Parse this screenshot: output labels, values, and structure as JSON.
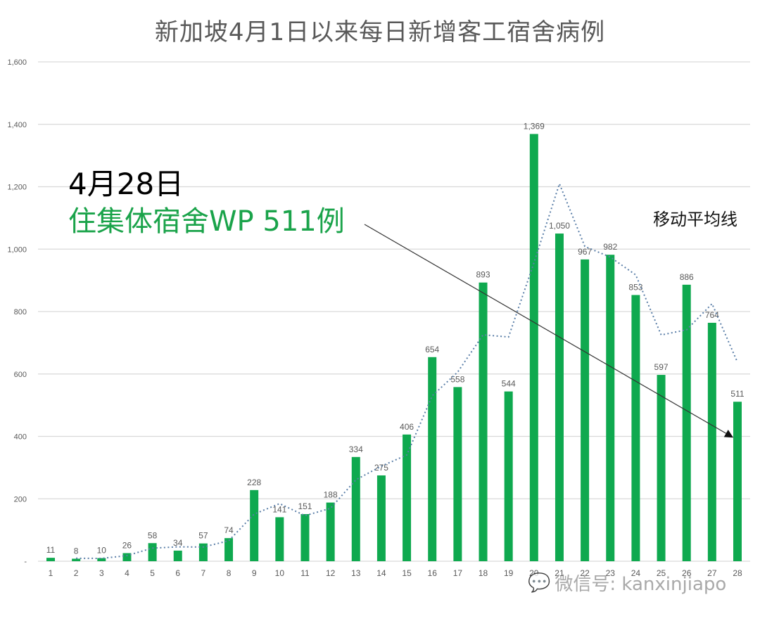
{
  "title": "新加坡4月1日以来每日新增客工宿舍病例",
  "annotations": {
    "date": "4月28日",
    "highlight": "住集体宿舍WP 511例",
    "moving_average_label": "移动平均线"
  },
  "watermark": {
    "icon": "wechat-icon",
    "text": "微信号: kanxinjiapo"
  },
  "colors": {
    "bar": "#0fa94f",
    "moving_average": "#5b7fa8",
    "grid": "#d9d9d9",
    "arrow": "#333333",
    "highlight_text": "#1aa34a"
  },
  "chart_data": {
    "type": "bar",
    "title": "新加坡4月1日以来每日新增客工宿舍病例",
    "xlabel": "",
    "ylabel": "",
    "categories": [
      "1",
      "2",
      "3",
      "4",
      "5",
      "6",
      "7",
      "8",
      "9",
      "10",
      "11",
      "12",
      "13",
      "14",
      "15",
      "16",
      "17",
      "18",
      "19",
      "20",
      "21",
      "22",
      "23",
      "24",
      "25",
      "26",
      "27",
      "28"
    ],
    "series": [
      {
        "name": "每日新增客工宿舍病例",
        "type": "bar",
        "values": [
          11,
          8,
          10,
          26,
          58,
          34,
          57,
          74,
          228,
          141,
          151,
          188,
          334,
          275,
          406,
          654,
          558,
          893,
          544,
          1369,
          1050,
          967,
          982,
          853,
          597,
          886,
          764,
          511
        ],
        "data_labels": [
          "11",
          "8",
          "10",
          "26",
          "58",
          "34",
          "57",
          "74",
          "228",
          "141",
          "151",
          "188",
          "334",
          "275",
          "406",
          "654",
          "558",
          "893",
          "544",
          "1,369",
          "1,050",
          "967",
          "982",
          "853",
          "597",
          "886",
          "764",
          "511"
        ]
      },
      {
        "name": "移动平均线 (2期)",
        "type": "line",
        "style": "dotted",
        "values": [
          null,
          9.5,
          9,
          18,
          42,
          46,
          45.5,
          65.5,
          151,
          184.5,
          146,
          169.5,
          261,
          304.5,
          340.5,
          530,
          606,
          725.5,
          718.5,
          956.5,
          1209.5,
          1008.5,
          974.5,
          917.5,
          725,
          741.5,
          825,
          637.5
        ]
      }
    ],
    "ylim": [
      0,
      1600
    ],
    "yticks": [
      0,
      200,
      400,
      600,
      800,
      1000,
      1200,
      1400,
      1600
    ],
    "ytick_labels": [
      "-",
      "200",
      "400",
      "600",
      "800",
      "1,000",
      "1,200",
      "1,400",
      "1,600"
    ],
    "grid": true,
    "legend": "none",
    "annotations": [
      {
        "text": "4月28日 住集体宿舍WP 511例",
        "arrow_to": "28"
      },
      {
        "text": "移动平均线"
      }
    ]
  }
}
